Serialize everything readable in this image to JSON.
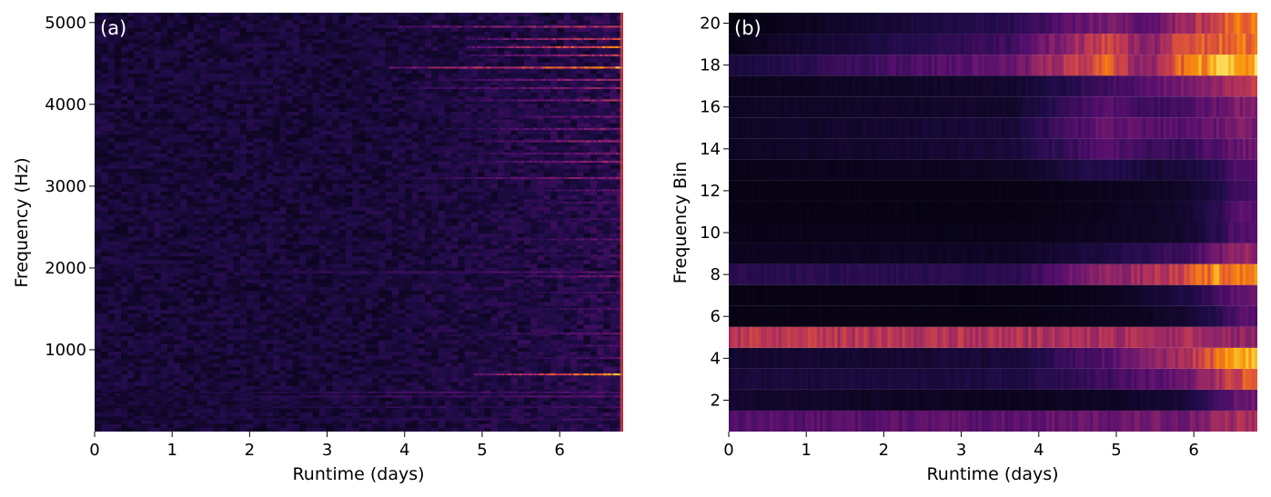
{
  "chart_data": [
    {
      "type": "heatmap",
      "panel_label": "(a)",
      "xlabel": "Runtime (days)",
      "ylabel": "Frequency (Hz)",
      "xlim": [
        0,
        6.82
      ],
      "ylim": [
        0,
        5120
      ],
      "xticks": [
        0,
        1,
        2,
        3,
        4,
        5,
        6
      ],
      "yticks": [
        1000,
        2000,
        3000,
        4000,
        5000
      ],
      "colormap": "inferno",
      "grid": false,
      "intensity_description": "mostly dark; sparse bright horizontal lines increasing after ~3.7 days, strongest near 4400-5000 Hz and a bright line near 700 Hz toward 6.8 days",
      "bright_lines": [
        {
          "freq": 4950,
          "start": 3.6,
          "strength": 0.6
        },
        {
          "freq": 4800,
          "start": 4.8,
          "strength": 0.7
        },
        {
          "freq": 4700,
          "start": 4.8,
          "strength": 0.85
        },
        {
          "freq": 4600,
          "start": 4.8,
          "strength": 0.6
        },
        {
          "freq": 4450,
          "start": 3.8,
          "strength": 0.9
        },
        {
          "freq": 4300,
          "start": 4.5,
          "strength": 0.55
        },
        {
          "freq": 4200,
          "start": 3.8,
          "strength": 0.45
        },
        {
          "freq": 4050,
          "start": 4.6,
          "strength": 0.5
        },
        {
          "freq": 3850,
          "start": 4.8,
          "strength": 0.4
        },
        {
          "freq": 3700,
          "start": 4.5,
          "strength": 0.45
        },
        {
          "freq": 3550,
          "start": 4.9,
          "strength": 0.55
        },
        {
          "freq": 3400,
          "start": 4.8,
          "strength": 0.45
        },
        {
          "freq": 3300,
          "start": 4.8,
          "strength": 0.5
        },
        {
          "freq": 3100,
          "start": 4.0,
          "strength": 0.45
        },
        {
          "freq": 2950,
          "start": 5.0,
          "strength": 0.35
        },
        {
          "freq": 2800,
          "start": 5.0,
          "strength": 0.3
        },
        {
          "freq": 2600,
          "start": 5.5,
          "strength": 0.3
        },
        {
          "freq": 2350,
          "start": 4.8,
          "strength": 0.35
        },
        {
          "freq": 2150,
          "start": 5.2,
          "strength": 0.3
        },
        {
          "freq": 1950,
          "start": 0.0,
          "strength": 0.3
        },
        {
          "freq": 1900,
          "start": 5.0,
          "strength": 0.4
        },
        {
          "freq": 1700,
          "start": 4.9,
          "strength": 0.3
        },
        {
          "freq": 1500,
          "start": 5.0,
          "strength": 0.3
        },
        {
          "freq": 1200,
          "start": 4.5,
          "strength": 0.35
        },
        {
          "freq": 1050,
          "start": 5.0,
          "strength": 0.3
        },
        {
          "freq": 900,
          "start": 4.9,
          "strength": 0.3
        },
        {
          "freq": 700,
          "start": 4.9,
          "strength": 0.95
        },
        {
          "freq": 480,
          "start": 0.0,
          "strength": 0.3
        },
        {
          "freq": 430,
          "start": 0.0,
          "strength": 0.3
        },
        {
          "freq": 300,
          "start": 0.0,
          "strength": 0.25
        },
        {
          "freq": 150,
          "start": 0.0,
          "strength": 0.25
        }
      ]
    },
    {
      "type": "heatmap",
      "panel_label": "(b)",
      "xlabel": "Runtime (days)",
      "ylabel": "Frequency Bin",
      "xlim": [
        0,
        6.82
      ],
      "ylim": [
        0.5,
        20.5
      ],
      "xticks": [
        0,
        1,
        2,
        3,
        4,
        5,
        6
      ],
      "yticks": [
        2,
        4,
        6,
        8,
        10,
        12,
        14,
        16,
        18,
        20
      ],
      "colormap": "inferno",
      "grid": false,
      "time_breaks": [
        0,
        3.7,
        4.9,
        5.4,
        5.9,
        6.3,
        6.6,
        6.82
      ],
      "bins": [
        {
          "bin": 1,
          "intensity": [
            0.25,
            0.27,
            0.3,
            0.32,
            0.32,
            0.4,
            0.45
          ]
        },
        {
          "bin": 2,
          "intensity": [
            0.08,
            0.05,
            0.06,
            0.08,
            0.1,
            0.2,
            0.3
          ]
        },
        {
          "bin": 3,
          "intensity": [
            0.1,
            0.12,
            0.2,
            0.25,
            0.3,
            0.45,
            0.6
          ]
        },
        {
          "bin": 4,
          "intensity": [
            0.08,
            0.1,
            0.25,
            0.35,
            0.45,
            0.65,
            0.8
          ]
        },
        {
          "bin": 5,
          "intensity": [
            0.5,
            0.48,
            0.45,
            0.44,
            0.45,
            0.42,
            0.4
          ]
        },
        {
          "bin": 6,
          "intensity": [
            0.03,
            0.03,
            0.05,
            0.06,
            0.08,
            0.15,
            0.25
          ]
        },
        {
          "bin": 7,
          "intensity": [
            0.03,
            0.03,
            0.05,
            0.08,
            0.12,
            0.2,
            0.3
          ]
        },
        {
          "bin": 8,
          "intensity": [
            0.15,
            0.15,
            0.4,
            0.45,
            0.55,
            0.75,
            0.7
          ]
        },
        {
          "bin": 9,
          "intensity": [
            0.05,
            0.06,
            0.12,
            0.15,
            0.2,
            0.3,
            0.4
          ]
        },
        {
          "bin": 10,
          "intensity": [
            0.04,
            0.04,
            0.06,
            0.06,
            0.08,
            0.15,
            0.25
          ]
        },
        {
          "bin": 11,
          "intensity": [
            0.03,
            0.03,
            0.05,
            0.06,
            0.08,
            0.15,
            0.25
          ]
        },
        {
          "bin": 12,
          "intensity": [
            0.03,
            0.03,
            0.05,
            0.05,
            0.07,
            0.12,
            0.2
          ]
        },
        {
          "bin": 13,
          "intensity": [
            0.04,
            0.06,
            0.15,
            0.1,
            0.1,
            0.15,
            0.25
          ]
        },
        {
          "bin": 14,
          "intensity": [
            0.06,
            0.1,
            0.25,
            0.2,
            0.18,
            0.25,
            0.3
          ]
        },
        {
          "bin": 15,
          "intensity": [
            0.06,
            0.1,
            0.3,
            0.25,
            0.25,
            0.3,
            0.35
          ]
        },
        {
          "bin": 16,
          "intensity": [
            0.06,
            0.08,
            0.25,
            0.2,
            0.22,
            0.3,
            0.35
          ]
        },
        {
          "bin": 17,
          "intensity": [
            0.05,
            0.08,
            0.2,
            0.25,
            0.35,
            0.4,
            0.5
          ]
        },
        {
          "bin": 18,
          "intensity": [
            0.1,
            0.3,
            0.65,
            0.35,
            0.7,
            0.8,
            0.85
          ]
        },
        {
          "bin": 19,
          "intensity": [
            0.04,
            0.2,
            0.55,
            0.35,
            0.6,
            0.65,
            0.7
          ]
        },
        {
          "bin": 20,
          "intensity": [
            0.02,
            0.15,
            0.35,
            0.25,
            0.45,
            0.55,
            0.7
          ]
        }
      ]
    }
  ]
}
